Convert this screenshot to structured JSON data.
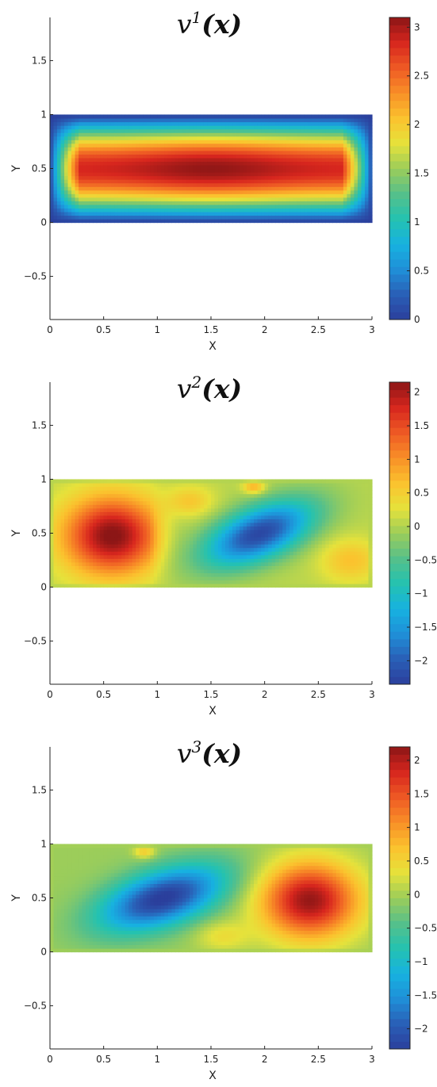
{
  "colormap": [
    "#2b3f9c",
    "#2a5fb6",
    "#1f8fd8",
    "#17b2e0",
    "#24c2b0",
    "#56c08a",
    "#9ccd5a",
    "#e6e23b",
    "#fbc22e",
    "#f88f27",
    "#ee5a24",
    "#d7261e",
    "#8c1616"
  ],
  "chart_data": [
    {
      "type": "heatmap",
      "title": {
        "base": "v",
        "sup": "1",
        "arg": "(x)"
      },
      "xlabel": "X",
      "ylabel": "Y",
      "xlim": [
        0,
        3
      ],
      "ylim": [
        -0.9,
        1.9
      ],
      "xticks": [
        "0",
        "0.5",
        "1",
        "1.5",
        "2",
        "2.5",
        "3"
      ],
      "xtick_values": [
        0,
        0.5,
        1,
        1.5,
        2,
        2.5,
        3
      ],
      "yticks": [
        "−0.5",
        "0",
        "0.5",
        "1",
        "1.5"
      ],
      "ytick_values": [
        -0.5,
        0,
        0.5,
        1,
        1.5
      ],
      "domain": {
        "x": [
          0,
          3
        ],
        "y": [
          0,
          1
        ]
      },
      "colorbar": {
        "range": [
          0,
          3.1
        ],
        "ticks": [
          "0",
          "0.5",
          "1",
          "1.5",
          "2",
          "2.5",
          "3"
        ],
        "tick_values": [
          0,
          0.5,
          1,
          1.5,
          2,
          2.5,
          3
        ]
      },
      "field": "mode1"
    },
    {
      "type": "heatmap",
      "title": {
        "base": "v",
        "sup": "2",
        "arg": "(x)"
      },
      "xlabel": "X",
      "ylabel": "Y",
      "xlim": [
        0,
        3
      ],
      "ylim": [
        -0.9,
        1.9
      ],
      "xticks": [
        "0",
        "0.5",
        "1",
        "1.5",
        "2",
        "2.5",
        "3"
      ],
      "xtick_values": [
        0,
        0.5,
        1,
        1.5,
        2,
        2.5,
        3
      ],
      "yticks": [
        "−0.5",
        "0",
        "0.5",
        "1",
        "1.5"
      ],
      "ytick_values": [
        -0.5,
        0,
        0.5,
        1,
        1.5
      ],
      "domain": {
        "x": [
          0,
          3
        ],
        "y": [
          0,
          1
        ]
      },
      "colorbar": {
        "range": [
          -2.35,
          2.15
        ],
        "ticks": [
          "−2",
          "−1.5",
          "−1",
          "−0.5",
          "0",
          "0.5",
          "1",
          "1.5",
          "2"
        ],
        "tick_values": [
          -2,
          -1.5,
          -1,
          -0.5,
          0,
          0.5,
          1,
          1.5,
          2
        ]
      },
      "field": "mode2"
    },
    {
      "type": "heatmap",
      "title": {
        "base": "v",
        "sup": "3",
        "arg": "(x)"
      },
      "xlabel": "X",
      "ylabel": "Y",
      "xlim": [
        0,
        3
      ],
      "ylim": [
        -0.9,
        1.9
      ],
      "xticks": [
        "0",
        "0.5",
        "1",
        "1.5",
        "2",
        "2.5",
        "3"
      ],
      "xtick_values": [
        0,
        0.5,
        1,
        1.5,
        2,
        2.5,
        3
      ],
      "yticks": [
        "−0.5",
        "0",
        "0.5",
        "1",
        "1.5"
      ],
      "ytick_values": [
        -0.5,
        0,
        0.5,
        1,
        1.5
      ],
      "domain": {
        "x": [
          0,
          3
        ],
        "y": [
          0,
          1
        ]
      },
      "colorbar": {
        "range": [
          -2.3,
          2.2
        ],
        "ticks": [
          "−2",
          "−1.5",
          "−1",
          "−0.5",
          "0",
          "0.5",
          "1",
          "1.5",
          "2"
        ],
        "tick_values": [
          -2,
          -1.5,
          -1,
          -0.5,
          0,
          0.5,
          1,
          1.5,
          2
        ]
      },
      "field": "mode3"
    }
  ]
}
